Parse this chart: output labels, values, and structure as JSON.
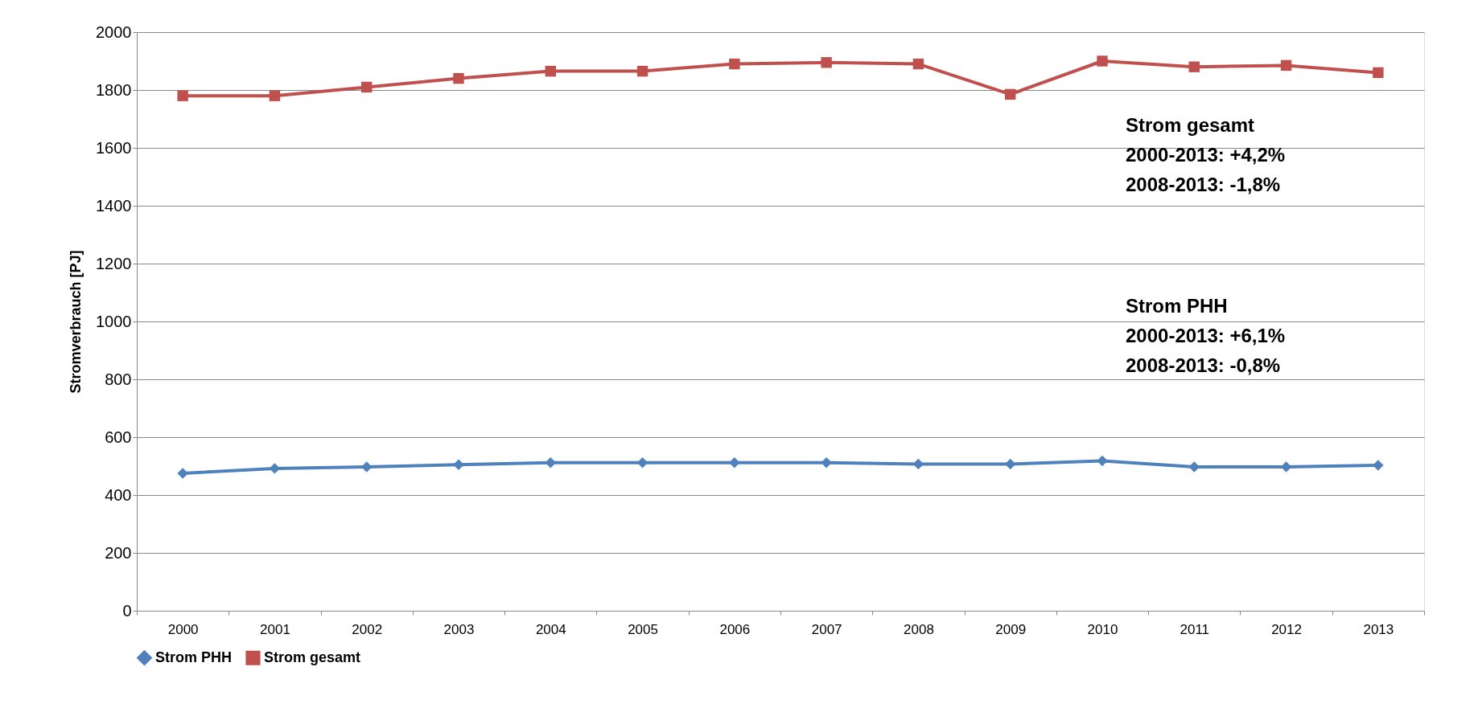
{
  "chart_data": {
    "type": "line",
    "ylabel": "Stromverbrauch [PJ]",
    "categories": [
      "2000",
      "2001",
      "2002",
      "2003",
      "2004",
      "2005",
      "2006",
      "2007",
      "2008",
      "2009",
      "2010",
      "2011",
      "2012",
      "2013"
    ],
    "series": [
      {
        "name": "Strom PHH",
        "color": "#4f81bd",
        "marker": "diamond",
        "values": [
          475,
          492,
          497,
          505,
          512,
          512,
          512,
          512,
          507,
          507,
          518,
          497,
          497,
          503
        ]
      },
      {
        "name": "Strom gesamt",
        "color": "#c0504d",
        "marker": "square",
        "values": [
          1780,
          1780,
          1810,
          1840,
          1865,
          1865,
          1890,
          1895,
          1890,
          1785,
          1900,
          1880,
          1885,
          1860
        ]
      }
    ],
    "ylim": [
      0,
      2000
    ],
    "yticks": [
      0,
      200,
      400,
      600,
      800,
      1000,
      1200,
      1400,
      1600,
      1800,
      2000
    ],
    "grid": "y",
    "legend": "bottom",
    "annotations": [
      "Strom gesamt\n2000-2013: +4,2%\n2008-2013: -1,8%",
      "Strom PHH\n2000-2013: +6,1%\n2008-2013: -0,8%"
    ]
  }
}
